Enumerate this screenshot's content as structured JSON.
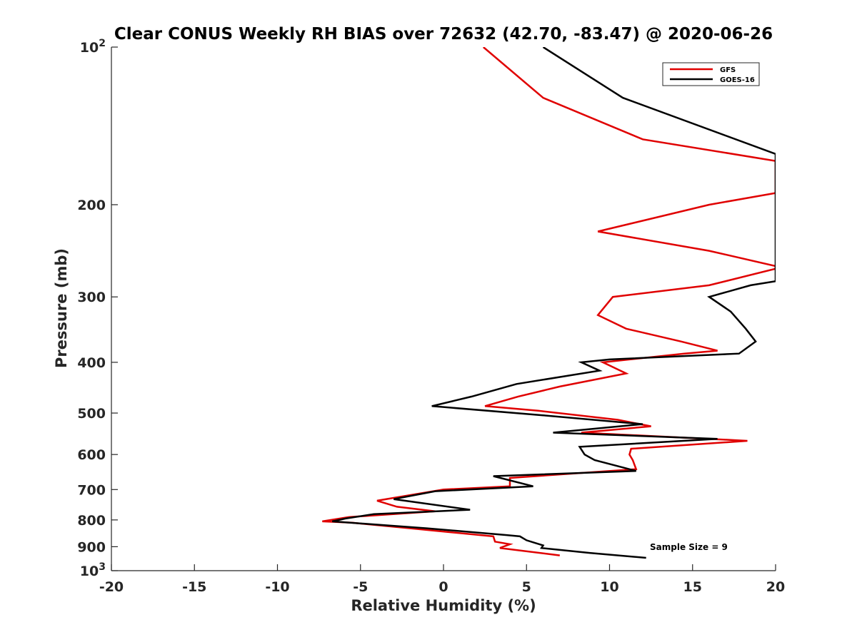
{
  "chart_data": {
    "type": "line",
    "title": "Clear CONUS Weekly RH BIAS over 72632 (42.70, -83.47) @ 2020-06-26",
    "xlabel": "Relative Humidity (%)",
    "ylabel": "Pressure (mb)",
    "xlim": [
      -20,
      20
    ],
    "ylim": [
      100,
      1000
    ],
    "y_scale": "log",
    "y_reversed": true,
    "grid": false,
    "legend_position": "top-right",
    "annotation": "Sample Size = 9",
    "x_ticks": [
      "-20",
      "-15",
      "-10",
      "-5",
      "0",
      "5",
      "10",
      "15",
      "20"
    ],
    "y_ticks": [
      {
        "value": 100,
        "base": "10",
        "exp": "2"
      },
      {
        "value": 200,
        "label": "200"
      },
      {
        "value": 300,
        "label": "300"
      },
      {
        "value": 400,
        "label": "400"
      },
      {
        "value": 500,
        "label": "500"
      },
      {
        "value": 600,
        "label": "600"
      },
      {
        "value": 700,
        "label": "700"
      },
      {
        "value": 800,
        "label": "800"
      },
      {
        "value": 900,
        "label": "900"
      },
      {
        "value": 1000,
        "base": "10",
        "exp": "3"
      }
    ],
    "series": [
      {
        "name": "GFS",
        "color": "#e00000",
        "points": [
          [
            2.4,
            100
          ],
          [
            6,
            125
          ],
          [
            12,
            150
          ],
          [
            20,
            165
          ],
          [
            20,
            190
          ],
          [
            16,
            200
          ],
          [
            9.3,
            225
          ],
          [
            16,
            245
          ],
          [
            20,
            262
          ],
          [
            20,
            265
          ],
          [
            16,
            285
          ],
          [
            10.2,
            300
          ],
          [
            9.3,
            325
          ],
          [
            11,
            345
          ],
          [
            14.3,
            365
          ],
          [
            16.5,
            380
          ],
          [
            14.5,
            385
          ],
          [
            9.6,
            400
          ],
          [
            11,
            420
          ],
          [
            7,
            445
          ],
          [
            4.5,
            465
          ],
          [
            2.5,
            485
          ],
          [
            5.7,
            495
          ],
          [
            10.5,
            515
          ],
          [
            12.5,
            530
          ],
          [
            8.3,
            545
          ],
          [
            16,
            560
          ],
          [
            18.3,
            565
          ],
          [
            11.3,
            585
          ],
          [
            11.2,
            600
          ],
          [
            11.4,
            615
          ],
          [
            11.6,
            640
          ],
          [
            4,
            665
          ],
          [
            4,
            690
          ],
          [
            0,
            700
          ],
          [
            -4,
            735
          ],
          [
            -2.8,
            755
          ],
          [
            -0.5,
            770
          ],
          [
            -5.7,
            790
          ],
          [
            -7.3,
            805
          ],
          [
            -5.5,
            810
          ],
          [
            -2,
            830
          ],
          [
            3,
            860
          ],
          [
            3.1,
            880
          ],
          [
            4,
            890
          ],
          [
            3.4,
            905
          ],
          [
            7,
            935
          ]
        ]
      },
      {
        "name": "GOES-16",
        "color": "#000000",
        "points": [
          [
            6,
            100
          ],
          [
            10.8,
            125
          ],
          [
            20,
            160
          ],
          [
            20,
            280
          ],
          [
            18.5,
            285
          ],
          [
            16,
            300
          ],
          [
            17.3,
            320
          ],
          [
            18.2,
            345
          ],
          [
            18.8,
            365
          ],
          [
            17.8,
            385
          ],
          [
            10,
            395
          ],
          [
            8.3,
            400
          ],
          [
            9.4,
            415
          ],
          [
            4.4,
            440
          ],
          [
            1.7,
            465
          ],
          [
            -0.7,
            485
          ],
          [
            6,
            505
          ],
          [
            12,
            525
          ],
          [
            6.6,
            545
          ],
          [
            16.5,
            560
          ],
          [
            8.2,
            580
          ],
          [
            8.5,
            600
          ],
          [
            9.1,
            615
          ],
          [
            11.6,
            645
          ],
          [
            3,
            660
          ],
          [
            5.4,
            690
          ],
          [
            -0.5,
            705
          ],
          [
            -3,
            730
          ],
          [
            1.6,
            765
          ],
          [
            -4.2,
            780
          ],
          [
            -5.9,
            795
          ],
          [
            -6.7,
            805
          ],
          [
            -1,
            830
          ],
          [
            3.8,
            855
          ],
          [
            4.6,
            860
          ],
          [
            5,
            875
          ],
          [
            6,
            895
          ],
          [
            5.9,
            905
          ],
          [
            8.8,
            925
          ],
          [
            12.2,
            945
          ]
        ]
      }
    ]
  }
}
